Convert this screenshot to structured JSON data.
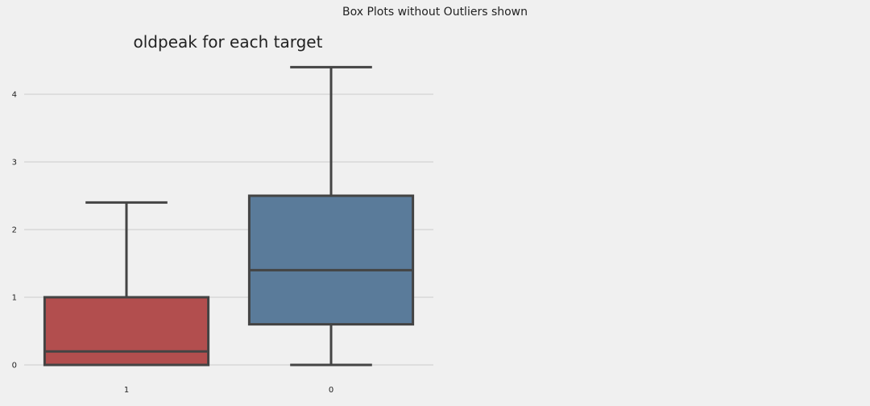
{
  "figure": {
    "suptitle": "Box Plots without Outliers shown"
  },
  "chart_data": {
    "type": "box",
    "title": "oldpeak for each target",
    "xlabel": "",
    "ylabel": "",
    "categories": [
      "1",
      "0"
    ],
    "boxes": [
      {
        "category": "1",
        "whisker_low": 0.0,
        "q1": 0.0,
        "median": 0.2,
        "q3": 1.0,
        "whisker_high": 2.4,
        "color": "#b24e4e"
      },
      {
        "category": "0",
        "whisker_low": 0.0,
        "q1": 0.6,
        "median": 1.4,
        "q3": 2.5,
        "whisker_high": 4.4,
        "color": "#5a7b9a"
      }
    ],
    "yticks": [
      0,
      1,
      2,
      3,
      4
    ],
    "ylim": [
      0,
      4.4
    ],
    "grid": true,
    "outliers_shown": false,
    "line_color": "#444444",
    "grid_color": "#cbcbcb"
  }
}
